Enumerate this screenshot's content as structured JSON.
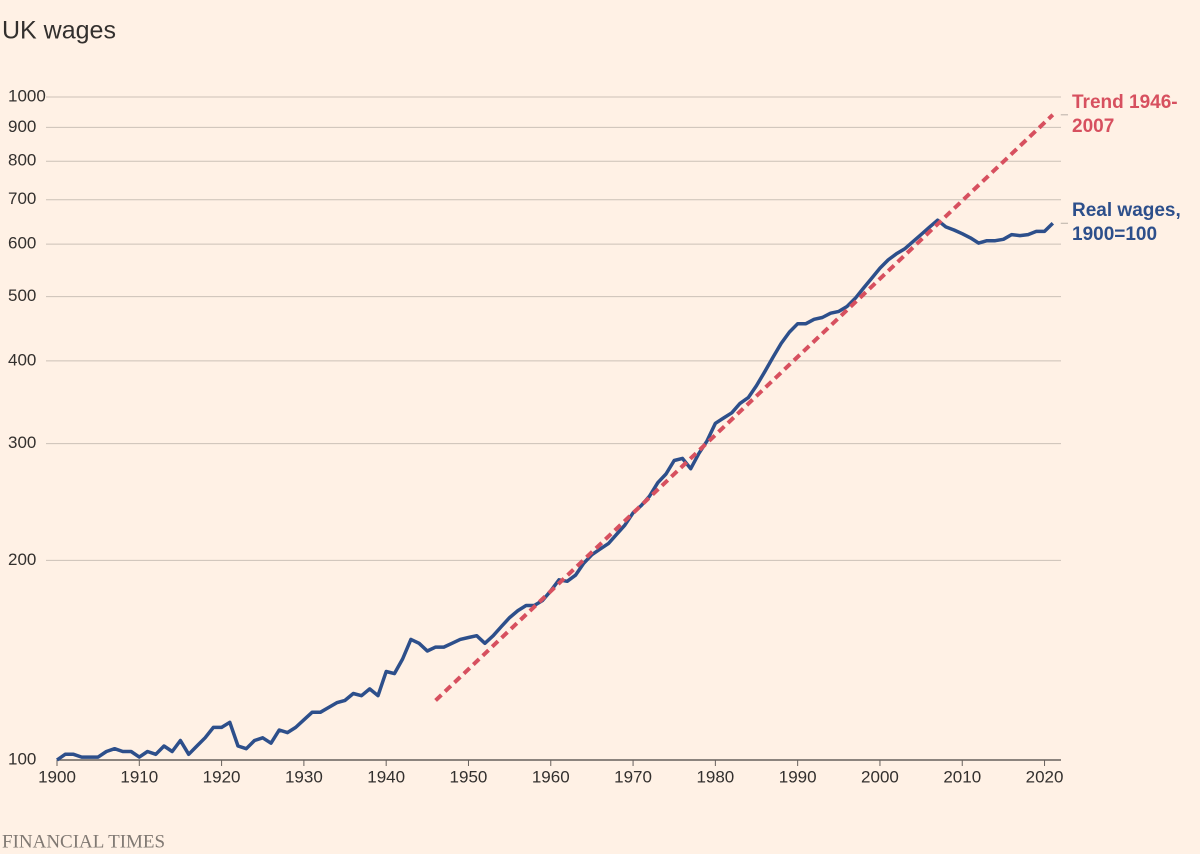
{
  "chart_data": {
    "type": "line",
    "title": "UK wages",
    "source": "FINANCIAL TIMES",
    "log_y": true,
    "grid": true,
    "xlim": [
      1900,
      2022
    ],
    "ylim": [
      100,
      1000
    ],
    "xticks": [
      1900,
      1910,
      1920,
      1930,
      1940,
      1950,
      1960,
      1970,
      1980,
      1990,
      2000,
      2010,
      2020
    ],
    "yticks": [
      100,
      200,
      300,
      400,
      500,
      600,
      700,
      800,
      900,
      1000
    ],
    "series": [
      {
        "name": "Real wages, 1900=100",
        "color": "#2d4f8b",
        "dashed": false,
        "x": [
          1900,
          1901,
          1902,
          1903,
          1904,
          1905,
          1906,
          1907,
          1908,
          1909,
          1910,
          1911,
          1912,
          1913,
          1914,
          1915,
          1916,
          1917,
          1918,
          1919,
          1920,
          1921,
          1922,
          1923,
          1924,
          1925,
          1926,
          1927,
          1928,
          1929,
          1930,
          1931,
          1932,
          1933,
          1934,
          1935,
          1936,
          1937,
          1938,
          1939,
          1940,
          1941,
          1942,
          1943,
          1944,
          1945,
          1946,
          1947,
          1948,
          1949,
          1950,
          1951,
          1952,
          1953,
          1954,
          1955,
          1956,
          1957,
          1958,
          1959,
          1960,
          1961,
          1962,
          1963,
          1964,
          1965,
          1966,
          1967,
          1968,
          1969,
          1970,
          1971,
          1972,
          1973,
          1974,
          1975,
          1976,
          1977,
          1978,
          1979,
          1980,
          1981,
          1982,
          1983,
          1984,
          1985,
          1986,
          1987,
          1988,
          1989,
          1990,
          1991,
          1992,
          1993,
          1994,
          1995,
          1996,
          1997,
          1998,
          1999,
          2000,
          2001,
          2002,
          2003,
          2004,
          2005,
          2006,
          2007,
          2008,
          2009,
          2010,
          2011,
          2012,
          2013,
          2014,
          2015,
          2016,
          2017,
          2018,
          2019,
          2020,
          2021
        ],
        "values": [
          100,
          102,
          102,
          101,
          101,
          101,
          103,
          104,
          103,
          103,
          101,
          103,
          102,
          105,
          103,
          107,
          102,
          105,
          108,
          112,
          112,
          114,
          105,
          104,
          107,
          108,
          106,
          111,
          110,
          112,
          115,
          118,
          118,
          120,
          122,
          123,
          126,
          125,
          128,
          125,
          136,
          135,
          142,
          152,
          150,
          146,
          148,
          148,
          150,
          152,
          153,
          154,
          150,
          154,
          159,
          164,
          168,
          171,
          171,
          174,
          180,
          187,
          186,
          190,
          198,
          204,
          208,
          212,
          219,
          226,
          236,
          242,
          250,
          262,
          270,
          283,
          285,
          275,
          290,
          303,
          322,
          328,
          334,
          345,
          352,
          367,
          385,
          405,
          425,
          442,
          455,
          455,
          462,
          465,
          472,
          475,
          483,
          497,
          515,
          533,
          552,
          568,
          580,
          590,
          605,
          620,
          636,
          652,
          637,
          630,
          622,
          613,
          602,
          607,
          607,
          610,
          620,
          618,
          620,
          627,
          627,
          645
        ]
      },
      {
        "name": "Trend 1946-2007",
        "color": "#d7505f",
        "dashed": true,
        "x": [
          1946,
          2021
        ],
        "values": [
          123,
          940
        ]
      }
    ]
  }
}
